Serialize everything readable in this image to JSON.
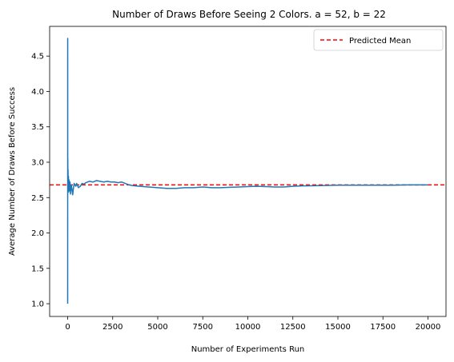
{
  "chart_data": {
    "type": "line",
    "title": "Number of Draws Before Seeing 2 Colors. a = 52, b = 22",
    "xlabel": "Number of Experiments Run",
    "ylabel": "Average Number of Draws Before Success",
    "xlim": [
      -1000,
      21000
    ],
    "ylim": [
      0.82,
      4.92
    ],
    "xticks": [
      0,
      2500,
      5000,
      7500,
      10000,
      12500,
      15000,
      17500,
      20000
    ],
    "yticks": [
      1.0,
      1.5,
      2.0,
      2.5,
      3.0,
      3.5,
      4.0,
      4.5
    ],
    "grid": false,
    "legend_position": "top-right",
    "series": [
      {
        "color": "#1f77b4",
        "x": [
          1,
          2,
          3,
          5,
          8,
          12,
          20,
          30,
          45,
          60,
          80,
          100,
          130,
          160,
          200,
          240,
          280,
          320,
          360,
          400,
          450,
          500,
          600,
          700,
          800,
          900,
          1000,
          1200,
          1400,
          1600,
          1800,
          2000,
          2200,
          2400,
          2600,
          2800,
          3000,
          3200,
          3400,
          3600,
          4000,
          4500,
          5000,
          5500,
          6000,
          6500,
          7000,
          7500,
          8000,
          8500,
          9000,
          9500,
          10000,
          10500,
          11000,
          11500,
          12000,
          12500,
          13000,
          14000,
          15000,
          16000,
          17000,
          18000,
          19000,
          20000
        ],
        "values": [
          1.0,
          4.75,
          3.2,
          2.55,
          3.05,
          2.7,
          2.9,
          2.65,
          2.8,
          2.58,
          2.75,
          2.6,
          2.72,
          2.55,
          2.68,
          2.62,
          2.54,
          2.63,
          2.7,
          2.68,
          2.66,
          2.7,
          2.64,
          2.66,
          2.7,
          2.69,
          2.71,
          2.73,
          2.72,
          2.74,
          2.73,
          2.72,
          2.73,
          2.72,
          2.72,
          2.71,
          2.72,
          2.7,
          2.68,
          2.67,
          2.66,
          2.65,
          2.64,
          2.63,
          2.63,
          2.64,
          2.64,
          2.65,
          2.64,
          2.64,
          2.645,
          2.65,
          2.655,
          2.66,
          2.655,
          2.65,
          2.65,
          2.66,
          2.665,
          2.67,
          2.675,
          2.675,
          2.675,
          2.675,
          2.68,
          2.68
        ]
      }
    ],
    "reference_lines": [
      {
        "name": "Predicted Mean",
        "y": 2.68,
        "color": "#ff0000",
        "style": "dashed"
      }
    ]
  }
}
